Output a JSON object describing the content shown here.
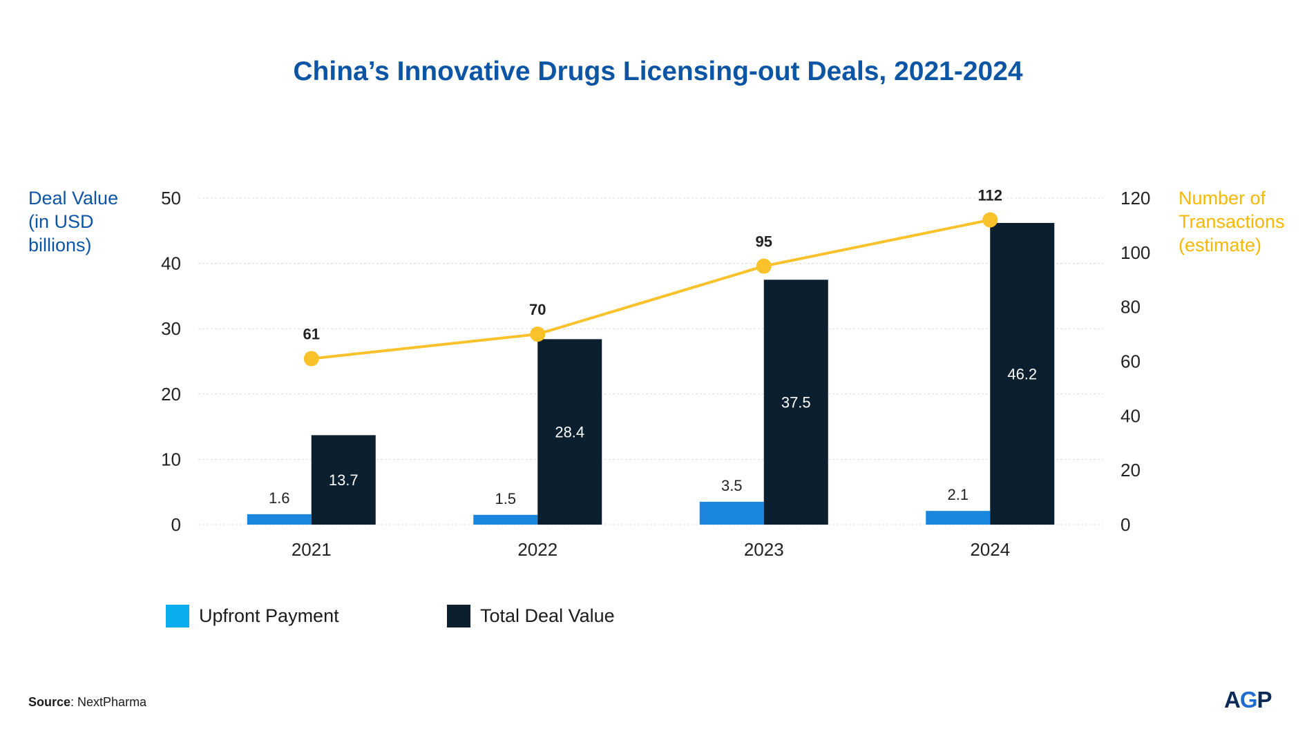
{
  "title": "China’s Innovative Drugs Licensing-out Deals, 2021-2024",
  "left_axis_title": [
    "Deal Value",
    "(in USD",
    "billions)"
  ],
  "right_axis_title": [
    "Number of",
    "Transactions",
    "(estimate)"
  ],
  "legend": {
    "upfront": "Upfront Payment",
    "total": "Total Deal Value"
  },
  "source": {
    "label": "Source",
    "text": ": NextPharma"
  },
  "logo": {
    "left": "A",
    "mid": "G",
    "right": "P"
  },
  "colors": {
    "title": "#0b55a4",
    "upfront": "#1a86de",
    "upfront_legend": "#0aaeef",
    "total": "#0b1f2e",
    "line": "#f9c12a",
    "grid": "#d9d9d9"
  },
  "chart_data": {
    "type": "bar+line",
    "categories": [
      "2021",
      "2022",
      "2023",
      "2024"
    ],
    "series": [
      {
        "name": "Upfront Payment",
        "axis": "left",
        "type": "bar",
        "values": [
          1.6,
          1.5,
          3.5,
          2.1
        ],
        "labels": [
          "1.6",
          "1.5",
          "3.5",
          "2.1"
        ]
      },
      {
        "name": "Total Deal Value",
        "axis": "left",
        "type": "bar",
        "values": [
          13.7,
          28.4,
          37.5,
          46.2
        ],
        "labels": [
          "13.7",
          "28.4",
          "37.5",
          "46.2"
        ]
      },
      {
        "name": "Number of Transactions (estimate)",
        "axis": "right",
        "type": "line",
        "values": [
          61,
          70,
          95,
          112
        ],
        "labels": [
          "61",
          "70",
          "95",
          "112"
        ]
      }
    ],
    "left_axis": {
      "min": 0,
      "max": 50,
      "ticks": [
        "0",
        "10",
        "20",
        "30",
        "40",
        "50"
      ]
    },
    "right_axis": {
      "min": 0,
      "max": 120,
      "ticks": [
        "0",
        "20",
        "40",
        "60",
        "80",
        "100",
        "120"
      ]
    },
    "grid": true,
    "legend_position": "bottom-left"
  }
}
